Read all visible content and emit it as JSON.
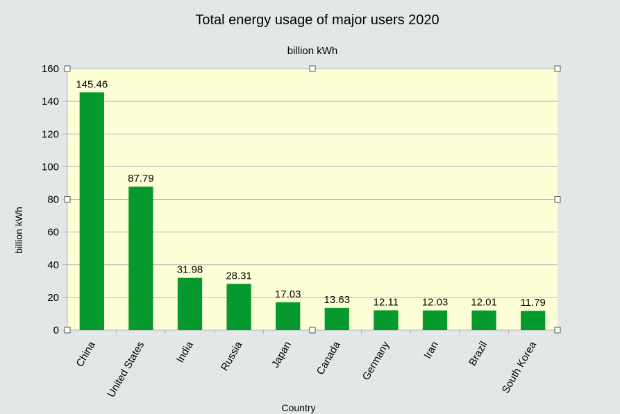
{
  "chart_data": {
    "type": "bar",
    "title": "Total energy usage of major users 2020",
    "subtitle": "billion kWh",
    "xlabel": "Country",
    "ylabel": "billion kWh",
    "ylim": [
      0,
      160
    ],
    "yticks": [
      0,
      20,
      40,
      60,
      80,
      100,
      120,
      140,
      160
    ],
    "categories": [
      "China",
      "United States",
      "India",
      "Russia",
      "Japan",
      "Canada",
      "Germany",
      "Iran",
      "Brazil",
      "South Korea"
    ],
    "values": [
      145.46,
      87.79,
      31.98,
      28.31,
      17.03,
      13.63,
      12.11,
      12.03,
      12.01,
      11.79
    ],
    "data_labels": [
      "145.46",
      "87.79",
      "31.98",
      "28.31",
      "17.03",
      "13.63",
      "12.11",
      "12.03",
      "12.01",
      "11.79"
    ],
    "grid": true,
    "legend": "none",
    "colors": {
      "bar": "#069a2e",
      "plot_background": "#ffffd7",
      "page_background": "#e2e7e7",
      "gridline": "#b3b3b3"
    }
  }
}
